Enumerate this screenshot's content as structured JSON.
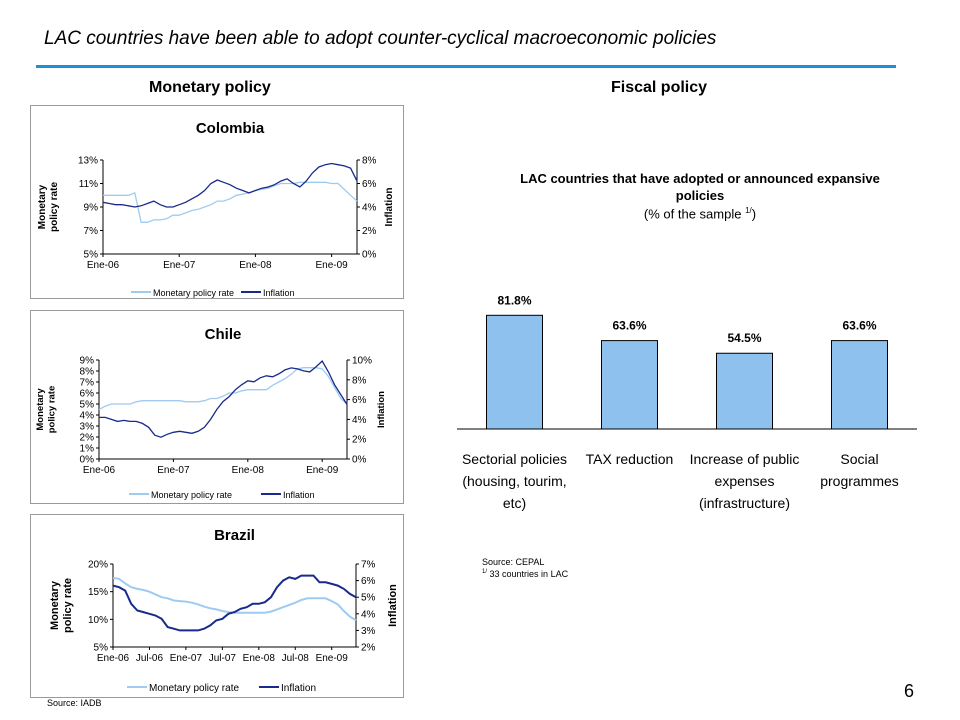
{
  "slide": {
    "title": "LAC countries have been able to adopt counter-cyclical macroeconomic policies",
    "page_number": "6",
    "accent_color": "#1e90d6"
  },
  "sections": {
    "monetary": "Monetary policy",
    "fiscal": "Fiscal policy"
  },
  "sources": {
    "left": "Source: IADB",
    "right": "Source: CEPAL",
    "right_note_marker": "1/",
    "right_note": "33 countries in LAC"
  },
  "colors": {
    "policy_rate": "#9fcbf0",
    "inflation": "#1a2a8c",
    "bar_fill": "#8fc1ef"
  },
  "chart_data": [
    {
      "type": "line",
      "title": "Colombia",
      "ylabel": "Monetary policy rate",
      "y2label": "Inflation",
      "x_ticks": [
        "Ene-06",
        "Ene-07",
        "Ene-08",
        "Ene-09"
      ],
      "x_tick_positions": [
        0,
        12,
        24,
        36
      ],
      "x_range": [
        0,
        40
      ],
      "y_ticks": [
        "5%",
        "7%",
        "9%",
        "11%",
        "13%"
      ],
      "y_range": [
        5,
        13
      ],
      "y2_ticks": [
        "0%",
        "2%",
        "4%",
        "6%",
        "8%"
      ],
      "y2_range": [
        0,
        8
      ],
      "legend": [
        "Monetary policy rate",
        "Inflation"
      ],
      "series": [
        {
          "name": "Monetary policy rate",
          "axis": "left",
          "values": [
            10,
            10,
            10,
            10,
            10,
            10.2,
            7.7,
            7.7,
            7.9,
            7.9,
            8,
            8.3,
            8.3,
            8.5,
            8.7,
            8.8,
            9,
            9.2,
            9.5,
            9.5,
            9.7,
            10,
            10.1,
            10.2,
            10.4,
            10.5,
            10.6,
            10.8,
            11,
            11,
            11,
            11.1,
            11.1,
            11.1,
            11.1,
            11.1,
            11,
            11,
            10.5,
            10,
            9.5
          ]
        },
        {
          "name": "Inflation",
          "axis": "right",
          "values": [
            4.4,
            4.3,
            4.2,
            4.2,
            4.1,
            4,
            4.1,
            4.3,
            4.5,
            4.2,
            4,
            4,
            4.2,
            4.4,
            4.7,
            5,
            5.4,
            6,
            6.3,
            6.1,
            5.9,
            5.6,
            5.4,
            5.2,
            5.4,
            5.6,
            5.7,
            5.9,
            6.2,
            6.4,
            6,
            5.7,
            6.2,
            6.9,
            7.4,
            7.6,
            7.7,
            7.6,
            7.5,
            7.3,
            6.2
          ]
        }
      ]
    },
    {
      "type": "line",
      "title": "Chile",
      "ylabel": "Monetary policy rate",
      "y2label": "Inflation",
      "x_ticks": [
        "Ene-06",
        "Ene-07",
        "Ene-08",
        "Ene-09"
      ],
      "x_tick_positions": [
        0,
        12,
        24,
        36
      ],
      "x_range": [
        0,
        40
      ],
      "y_ticks": [
        "0%",
        "1%",
        "2%",
        "3%",
        "4%",
        "5%",
        "6%",
        "7%",
        "8%",
        "9%"
      ],
      "y_range": [
        0,
        9
      ],
      "y2_ticks": [
        "0%",
        "2%",
        "4%",
        "6%",
        "8%",
        "10%"
      ],
      "y2_range": [
        0,
        10
      ],
      "legend": [
        "Monetary policy rate",
        "Inflation"
      ],
      "series": [
        {
          "name": "Monetary policy rate",
          "axis": "left",
          "values": [
            4.5,
            4.8,
            5,
            5,
            5,
            5,
            5.2,
            5.3,
            5.3,
            5.3,
            5.3,
            5.3,
            5.3,
            5.3,
            5.2,
            5.2,
            5.2,
            5.3,
            5.5,
            5.5,
            5.7,
            6,
            6,
            6.2,
            6.3,
            6.3,
            6.3,
            6.3,
            6.7,
            7,
            7.3,
            7.7,
            8.2,
            8.3,
            8.3,
            8.3,
            8.2,
            7.5,
            6.5,
            5.5,
            5
          ]
        },
        {
          "name": "Inflation",
          "axis": "right",
          "values": [
            4.2,
            4.2,
            4,
            3.8,
            3.9,
            3.8,
            3.8,
            3.6,
            3.2,
            2.4,
            2.2,
            2.5,
            2.7,
            2.8,
            2.7,
            2.6,
            2.8,
            3.2,
            4,
            5,
            5.8,
            6.3,
            7,
            7.5,
            7.9,
            7.8,
            8.2,
            8.4,
            8.3,
            8.6,
            9,
            9.2,
            9.1,
            8.9,
            8.8,
            9.3,
            9.9,
            8.8,
            7.5,
            6.5,
            5.5
          ]
        }
      ]
    },
    {
      "type": "line",
      "title": "Brazil",
      "ylabel": "Monetary policy rate",
      "y2label": "Inflation",
      "x_ticks": [
        "Ene-06",
        "Jul-06",
        "Ene-07",
        "Jul-07",
        "Ene-08",
        "Jul-08",
        "Ene-09"
      ],
      "x_tick_positions": [
        0,
        6,
        12,
        18,
        24,
        30,
        36
      ],
      "x_range": [
        0,
        40
      ],
      "y_ticks": [
        "5%",
        "10%",
        "15%",
        "20%"
      ],
      "y_range": [
        5,
        20
      ],
      "y2_ticks": [
        "2%",
        "3%",
        "4%",
        "5%",
        "6%",
        "7%"
      ],
      "y2_range": [
        2,
        7
      ],
      "legend": [
        "Monetary policy rate",
        "Inflation"
      ],
      "series": [
        {
          "name": "Monetary policy rate",
          "axis": "left",
          "values": [
            17.5,
            17.3,
            16.5,
            15.8,
            15.5,
            15.3,
            15,
            14.5,
            14,
            13.8,
            13.4,
            13.3,
            13.2,
            13,
            12.7,
            12.3,
            12,
            11.8,
            11.5,
            11.3,
            11.2,
            11.2,
            11.2,
            11.2,
            11.2,
            11.2,
            11.4,
            11.8,
            12.2,
            12.6,
            13,
            13.5,
            13.8,
            13.8,
            13.8,
            13.8,
            13.3,
            12.7,
            11.5,
            10.5,
            9.8
          ]
        },
        {
          "name": "Inflation",
          "axis": "right",
          "values": [
            5.7,
            5.6,
            5.4,
            4.6,
            4.2,
            4.1,
            4,
            3.9,
            3.7,
            3.2,
            3.1,
            3,
            3,
            3,
            3,
            3.1,
            3.3,
            3.6,
            3.7,
            4,
            4.1,
            4.3,
            4.4,
            4.6,
            4.6,
            4.7,
            5,
            5.6,
            6,
            6.2,
            6.1,
            6.3,
            6.3,
            6.3,
            5.9,
            5.9,
            5.8,
            5.7,
            5.5,
            5.2,
            5
          ]
        }
      ]
    },
    {
      "type": "bar",
      "title": "LAC countries that have adopted or announced expansive policies",
      "subtitle": "(% of the sample",
      "subtitle_marker": "1/",
      "subtitle_close": ")",
      "categories": [
        [
          "Sectorial policies",
          "(housing, tourim,",
          "etc)"
        ],
        [
          "TAX reduction"
        ],
        [
          "Increase of public",
          "expenses",
          "(infrastructure)"
        ],
        [
          "Social",
          "programmes"
        ]
      ],
      "values": [
        81.8,
        63.6,
        54.5,
        63.6
      ],
      "labels": [
        "81.8%",
        "63.6%",
        "54.5%",
        "63.6%"
      ],
      "ylim": [
        0,
        100
      ]
    }
  ]
}
